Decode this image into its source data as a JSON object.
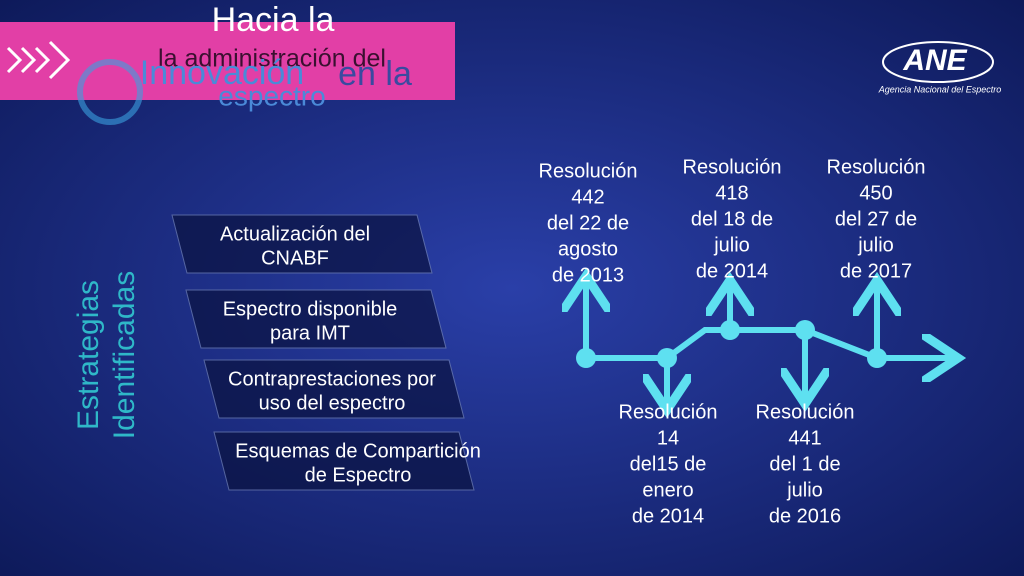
{
  "header": {
    "title_lines": [
      "Hacia la",
      "la administración del",
      "Innovación",
      "en la",
      "espectro"
    ]
  },
  "logo": {
    "name": "ANE",
    "subtitle": "Agencia Nacional del Espectro"
  },
  "side_label": [
    "Estrategias",
    "Identificadas"
  ],
  "strategies": [
    [
      "Actualización del",
      "CNABF"
    ],
    [
      "Espectro disponible",
      "para IMT"
    ],
    [
      "Contraprestaciones por",
      "uso del espectro"
    ],
    [
      "Esquemas de Compartición",
      "de Espectro"
    ]
  ],
  "timeline_top": [
    [
      "Resolución",
      "442",
      "del 22 de",
      "agosto",
      "de 2013"
    ],
    [
      "Resolución",
      "418",
      "del 18 de",
      "julio",
      "de 2014"
    ],
    [
      "Resolución",
      "450",
      "del 27 de",
      "julio",
      "de 2017"
    ]
  ],
  "timeline_bottom": [
    [
      "Resolución",
      "14",
      "del15 de",
      "enero",
      "de 2014"
    ],
    [
      "Resolución",
      "441",
      "del 1 de",
      "julio",
      "de 2016"
    ]
  ]
}
